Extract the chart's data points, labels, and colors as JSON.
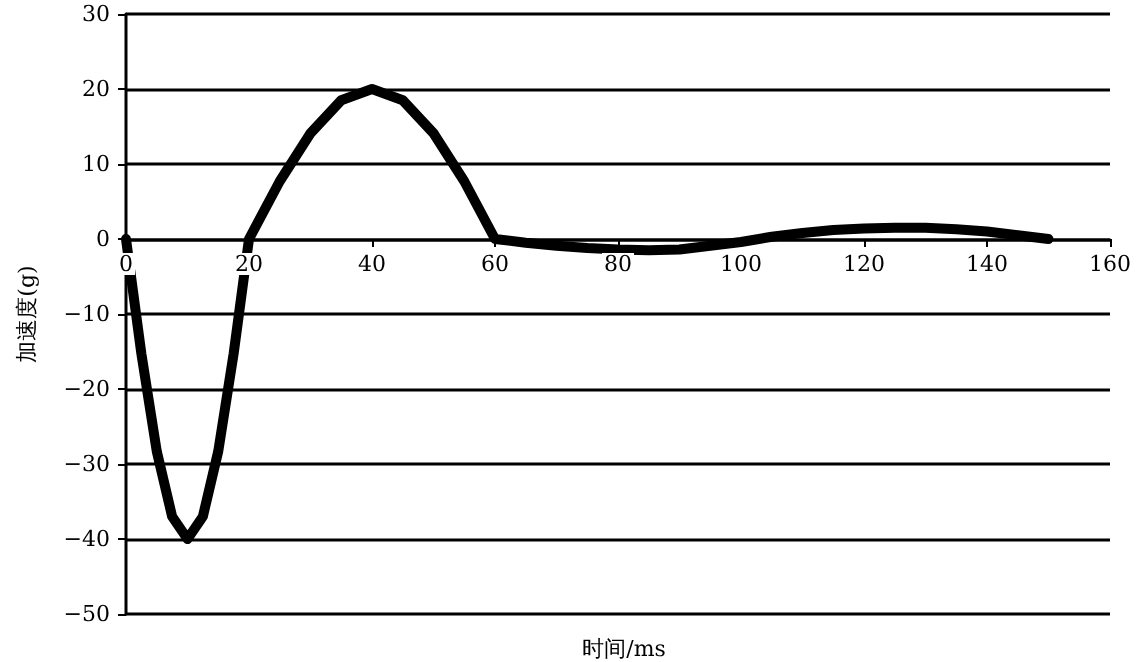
{
  "chart_data": {
    "type": "line",
    "xlabel": "时间/ms",
    "ylabel": "加速度(g)",
    "series": [
      {
        "color": "#000000",
        "x": [
          0,
          2.5,
          5,
          7.5,
          10,
          12.5,
          15,
          17.5,
          20,
          25,
          30,
          35,
          40,
          45,
          50,
          55,
          60,
          65,
          70,
          75,
          80,
          85,
          90,
          95,
          100,
          105,
          110,
          115,
          120,
          125,
          130,
          135,
          140,
          145,
          150
        ],
        "values": [
          0,
          -15.3,
          -28.3,
          -37,
          -40,
          -37,
          -28.3,
          -15.3,
          0,
          7.7,
          14.1,
          18.5,
          20,
          18.5,
          14.1,
          7.7,
          0,
          -0.5,
          -0.9,
          -1.2,
          -1.4,
          -1.5,
          -1.4,
          -0.9,
          -0.4,
          0.3,
          0.8,
          1.2,
          1.4,
          1.5,
          1.5,
          1.3,
          1,
          0.5,
          0
        ]
      }
    ],
    "xlim": [
      0,
      160
    ],
    "xticks": [
      0,
      20,
      40,
      60,
      80,
      100,
      120,
      140,
      160
    ],
    "ylim": [
      -50,
      30
    ],
    "yticks": [
      -50,
      -40,
      -30,
      -20,
      -10,
      0,
      10,
      20,
      30
    ],
    "grid": "y",
    "marker": "none",
    "line_style": "solid"
  }
}
